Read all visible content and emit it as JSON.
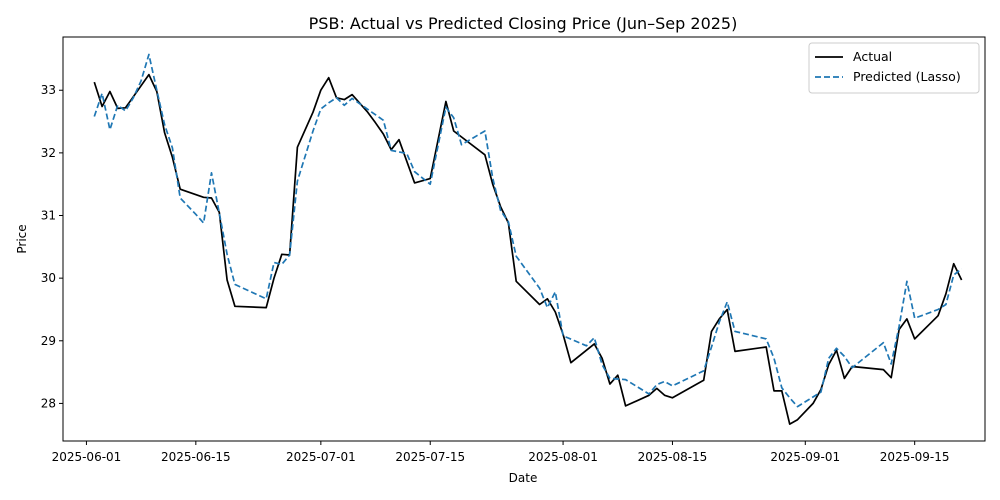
{
  "chart_data": {
    "type": "line",
    "title": "PSB: Actual vs Predicted Closing Price (Jun–Sep 2025)",
    "xlabel": "Date",
    "ylabel": "Price",
    "xlim": [
      "2025-05-29",
      "2025-09-24"
    ],
    "ylim": [
      27.4,
      33.85
    ],
    "x_ticks": [
      "2025-06-01",
      "2025-06-15",
      "2025-07-01",
      "2025-07-15",
      "2025-08-01",
      "2025-08-15",
      "2025-09-01",
      "2025-09-15"
    ],
    "y_ticks": [
      28,
      29,
      30,
      31,
      32,
      33
    ],
    "grid": false,
    "legend": "top-right",
    "series": [
      {
        "name": "Actual",
        "color": "#000000",
        "style": "solid",
        "points": [
          [
            "2025-06-02",
            33.13
          ],
          [
            "2025-06-03",
            32.74
          ],
          [
            "2025-06-04",
            32.98
          ],
          [
            "2025-06-05",
            32.71
          ],
          [
            "2025-06-06",
            32.72
          ],
          [
            "2025-06-09",
            33.25
          ],
          [
            "2025-06-10",
            32.98
          ],
          [
            "2025-06-11",
            32.32
          ],
          [
            "2025-06-12",
            31.93
          ],
          [
            "2025-06-13",
            31.42
          ],
          [
            "2025-06-16",
            31.29
          ],
          [
            "2025-06-17",
            31.28
          ],
          [
            "2025-06-18",
            31.05
          ],
          [
            "2025-06-19",
            29.97
          ],
          [
            "2025-06-20",
            29.55
          ],
          [
            "2025-06-24",
            29.53
          ],
          [
            "2025-06-25",
            30.0
          ],
          [
            "2025-06-26",
            30.38
          ],
          [
            "2025-06-27",
            30.37
          ],
          [
            "2025-06-28",
            32.09
          ],
          [
            "2025-06-30",
            32.65
          ],
          [
            "2025-07-01",
            33.0
          ],
          [
            "2025-07-02",
            33.2
          ],
          [
            "2025-07-03",
            32.88
          ],
          [
            "2025-07-04",
            32.85
          ],
          [
            "2025-07-05",
            32.93
          ],
          [
            "2025-07-07",
            32.65
          ],
          [
            "2025-07-08",
            32.48
          ],
          [
            "2025-07-09",
            32.3
          ],
          [
            "2025-07-10",
            32.05
          ],
          [
            "2025-07-11",
            32.21
          ],
          [
            "2025-07-13",
            31.52
          ],
          [
            "2025-07-15",
            31.59
          ],
          [
            "2025-07-17",
            32.82
          ],
          [
            "2025-07-18",
            32.35
          ],
          [
            "2025-07-22",
            31.97
          ],
          [
            "2025-07-23",
            31.5
          ],
          [
            "2025-07-24",
            31.14
          ],
          [
            "2025-07-25",
            30.88
          ],
          [
            "2025-07-26",
            29.95
          ],
          [
            "2025-07-29",
            29.58
          ],
          [
            "2025-07-30",
            29.67
          ],
          [
            "2025-07-31",
            29.46
          ],
          [
            "2025-08-01",
            29.1
          ],
          [
            "2025-08-02",
            28.65
          ],
          [
            "2025-08-05",
            28.95
          ],
          [
            "2025-08-06",
            28.72
          ],
          [
            "2025-08-07",
            28.31
          ],
          [
            "2025-08-08",
            28.45
          ],
          [
            "2025-08-09",
            27.96
          ],
          [
            "2025-08-12",
            28.13
          ],
          [
            "2025-08-13",
            28.24
          ],
          [
            "2025-08-14",
            28.13
          ],
          [
            "2025-08-15",
            28.09
          ],
          [
            "2025-08-19",
            28.37
          ],
          [
            "2025-08-20",
            29.15
          ],
          [
            "2025-08-21",
            29.35
          ],
          [
            "2025-08-22",
            29.5
          ],
          [
            "2025-08-23",
            28.83
          ],
          [
            "2025-08-27",
            28.9
          ],
          [
            "2025-08-28",
            28.2
          ],
          [
            "2025-08-29",
            28.2
          ],
          [
            "2025-08-30",
            27.67
          ],
          [
            "2025-08-31",
            27.74
          ],
          [
            "2025-09-02",
            28.0
          ],
          [
            "2025-09-03",
            28.22
          ],
          [
            "2025-09-04",
            28.62
          ],
          [
            "2025-09-05",
            28.85
          ],
          [
            "2025-09-06",
            28.4
          ],
          [
            "2025-09-07",
            28.59
          ],
          [
            "2025-09-11",
            28.54
          ],
          [
            "2025-09-12",
            28.41
          ],
          [
            "2025-09-13",
            29.18
          ],
          [
            "2025-09-14",
            29.35
          ],
          [
            "2025-09-15",
            29.03
          ],
          [
            "2025-09-18",
            29.4
          ],
          [
            "2025-09-19",
            29.75
          ],
          [
            "2025-09-20",
            30.23
          ],
          [
            "2025-09-21",
            29.97
          ]
        ]
      },
      {
        "name": "Predicted (Lasso)",
        "color": "#1f77b4",
        "style": "dashed",
        "points": [
          [
            "2025-06-02",
            32.58
          ],
          [
            "2025-06-03",
            32.95
          ],
          [
            "2025-06-04",
            32.37
          ],
          [
            "2025-06-05",
            32.76
          ],
          [
            "2025-06-06",
            32.67
          ],
          [
            "2025-06-07",
            32.88
          ],
          [
            "2025-06-08",
            33.15
          ],
          [
            "2025-06-09",
            33.57
          ],
          [
            "2025-06-10",
            33.0
          ],
          [
            "2025-06-11",
            32.45
          ],
          [
            "2025-06-12",
            32.08
          ],
          [
            "2025-06-13",
            31.28
          ],
          [
            "2025-06-15",
            31.02
          ],
          [
            "2025-06-16",
            30.88
          ],
          [
            "2025-06-17",
            31.68
          ],
          [
            "2025-06-18",
            31.04
          ],
          [
            "2025-06-19",
            30.38
          ],
          [
            "2025-06-20",
            29.9
          ],
          [
            "2025-06-24",
            29.67
          ],
          [
            "2025-06-25",
            30.25
          ],
          [
            "2025-06-26",
            30.22
          ],
          [
            "2025-06-27",
            30.37
          ],
          [
            "2025-06-28",
            31.55
          ],
          [
            "2025-06-30",
            32.35
          ],
          [
            "2025-07-01",
            32.7
          ],
          [
            "2025-07-02",
            32.8
          ],
          [
            "2025-07-03",
            32.88
          ],
          [
            "2025-07-04",
            32.76
          ],
          [
            "2025-07-05",
            32.87
          ],
          [
            "2025-07-09",
            32.52
          ],
          [
            "2025-07-10",
            32.04
          ],
          [
            "2025-07-12",
            31.99
          ],
          [
            "2025-07-13",
            31.7
          ],
          [
            "2025-07-15",
            31.5
          ],
          [
            "2025-07-17",
            32.73
          ],
          [
            "2025-07-18",
            32.56
          ],
          [
            "2025-07-19",
            32.13
          ],
          [
            "2025-07-22",
            32.35
          ],
          [
            "2025-07-23",
            31.6
          ],
          [
            "2025-07-24",
            31.08
          ],
          [
            "2025-07-25",
            30.9
          ],
          [
            "2025-07-26",
            30.35
          ],
          [
            "2025-07-29",
            29.84
          ],
          [
            "2025-07-30",
            29.53
          ],
          [
            "2025-07-31",
            29.78
          ],
          [
            "2025-08-01",
            29.08
          ],
          [
            "2025-08-04",
            28.92
          ],
          [
            "2025-08-05",
            29.05
          ],
          [
            "2025-08-06",
            28.62
          ],
          [
            "2025-08-07",
            28.4
          ],
          [
            "2025-08-09",
            28.38
          ],
          [
            "2025-08-12",
            28.15
          ],
          [
            "2025-08-13",
            28.3
          ],
          [
            "2025-08-14",
            28.35
          ],
          [
            "2025-08-15",
            28.28
          ],
          [
            "2025-08-19",
            28.52
          ],
          [
            "2025-08-20",
            28.9
          ],
          [
            "2025-08-21",
            29.3
          ],
          [
            "2025-08-22",
            29.62
          ],
          [
            "2025-08-23",
            29.15
          ],
          [
            "2025-08-27",
            29.03
          ],
          [
            "2025-08-28",
            28.72
          ],
          [
            "2025-08-29",
            28.25
          ],
          [
            "2025-08-30",
            28.09
          ],
          [
            "2025-08-31",
            27.95
          ],
          [
            "2025-09-03",
            28.18
          ],
          [
            "2025-09-04",
            28.72
          ],
          [
            "2025-09-05",
            28.88
          ],
          [
            "2025-09-06",
            28.75
          ],
          [
            "2025-09-07",
            28.57
          ],
          [
            "2025-09-11",
            28.97
          ],
          [
            "2025-09-12",
            28.63
          ],
          [
            "2025-09-13",
            29.23
          ],
          [
            "2025-09-14",
            29.95
          ],
          [
            "2025-09-15",
            29.36
          ],
          [
            "2025-09-18",
            29.5
          ],
          [
            "2025-09-19",
            29.58
          ],
          [
            "2025-09-20",
            30.05
          ],
          [
            "2025-09-21",
            30.15
          ]
        ]
      }
    ]
  }
}
